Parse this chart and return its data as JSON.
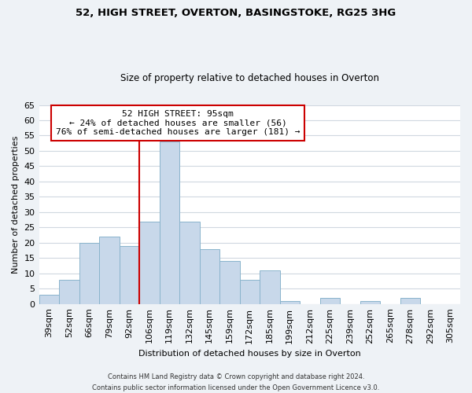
{
  "title1": "52, HIGH STREET, OVERTON, BASINGSTOKE, RG25 3HG",
  "title2": "Size of property relative to detached houses in Overton",
  "xlabel": "Distribution of detached houses by size in Overton",
  "ylabel": "Number of detached properties",
  "bin_labels": [
    "39sqm",
    "52sqm",
    "66sqm",
    "79sqm",
    "92sqm",
    "106sqm",
    "119sqm",
    "132sqm",
    "145sqm",
    "159sqm",
    "172sqm",
    "185sqm",
    "199sqm",
    "212sqm",
    "225sqm",
    "239sqm",
    "252sqm",
    "265sqm",
    "278sqm",
    "292sqm",
    "305sqm"
  ],
  "bar_values": [
    3,
    8,
    20,
    22,
    19,
    27,
    53,
    27,
    18,
    14,
    8,
    11,
    1,
    0,
    2,
    0,
    1,
    0,
    2,
    0,
    0
  ],
  "bar_color": "#c8d8ea",
  "bar_edge_color": "#8ab4cc",
  "vline_color": "#cc0000",
  "ylim": [
    0,
    65
  ],
  "yticks": [
    0,
    5,
    10,
    15,
    20,
    25,
    30,
    35,
    40,
    45,
    50,
    55,
    60,
    65
  ],
  "annotation_title": "52 HIGH STREET: 95sqm",
  "annotation_line1": "← 24% of detached houses are smaller (56)",
  "annotation_line2": "76% of semi-detached houses are larger (181) →",
  "footnote1": "Contains HM Land Registry data © Crown copyright and database right 2024.",
  "footnote2": "Contains public sector information licensed under the Open Government Licence v3.0.",
  "bg_color": "#eef2f6",
  "plot_bg_color": "#ffffff",
  "grid_color": "#d0d8e0"
}
